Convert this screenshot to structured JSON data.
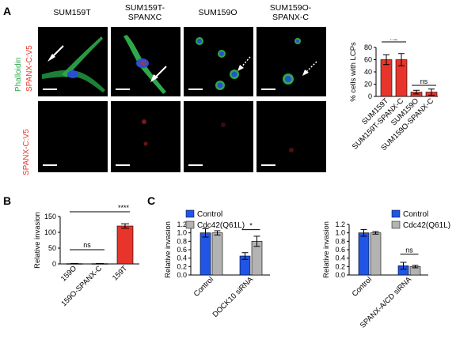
{
  "panels": {
    "a": "A",
    "b": "B",
    "c": "C"
  },
  "microscopy": {
    "columns": [
      "SUM159T",
      "SUM159T-\nSPANXC",
      "SUM159O",
      "SUM159O-\nSPANX-C"
    ],
    "row1_label_green": "Phalloidin",
    "row1_label_red": "SPANX-C:V5",
    "row2_label": "SPANX-C:V5"
  },
  "colors": {
    "red": "#e8352b",
    "blue": "#2055e6",
    "grey": "#b3b3b3",
    "green": "#2ea84a"
  },
  "chart_data": [
    {
      "id": "A",
      "type": "bar",
      "ylabel": "% cells with LCPs",
      "categories": [
        "SUM159T",
        "SUM159T-SPANX-C",
        "SUM159O",
        "SUM159O-SPANX-C"
      ],
      "values": [
        60,
        60,
        7,
        7
      ],
      "errors": [
        8,
        10,
        3,
        5
      ],
      "ylim": [
        0,
        80
      ],
      "yticks": [
        "0",
        "20",
        "40",
        "60",
        "80"
      ],
      "significance": [
        "ns",
        "****",
        "****",
        "ns"
      ]
    },
    {
      "id": "B",
      "type": "bar",
      "ylabel": "Relative invasion",
      "categories": [
        "159O",
        "159O-SPANX-C",
        "159T"
      ],
      "values": [
        1,
        1,
        120
      ],
      "errors": [
        0.5,
        0.5,
        7
      ],
      "ylim": [
        0,
        150
      ],
      "yticks": [
        "0",
        "50",
        "100",
        "150"
      ],
      "significance": [
        "ns",
        "****"
      ]
    },
    {
      "id": "C1",
      "type": "bar",
      "ylabel": "Relative invasion",
      "categories": [
        "Control",
        "DOCK10 siRNA"
      ],
      "series": [
        {
          "name": "Control",
          "values": [
            1.0,
            0.45
          ],
          "errors": [
            0.1,
            0.08
          ]
        },
        {
          "name": "Cdc42(Q61L)",
          "values": [
            1.0,
            0.8
          ],
          "errors": [
            0.05,
            0.12
          ]
        }
      ],
      "ylim": [
        0,
        1.2
      ],
      "yticks": [
        "0.0",
        "0.2",
        "0.4",
        "0.6",
        "0.8",
        "1.0",
        "1.2"
      ],
      "significance": [
        "*"
      ]
    },
    {
      "id": "C2",
      "type": "bar",
      "ylabel": "Relative invasion",
      "categories": [
        "Control",
        "SPANX-A/CD siRNA"
      ],
      "series": [
        {
          "name": "Control",
          "values": [
            1.0,
            0.22
          ],
          "errors": [
            0.08,
            0.08
          ]
        },
        {
          "name": "Cdc42(Q61L)",
          "values": [
            1.0,
            0.2
          ],
          "errors": [
            0.03,
            0.03
          ]
        }
      ],
      "ylim": [
        0,
        1.2
      ],
      "yticks": [
        "0.0",
        "0.2",
        "0.4",
        "0.6",
        "0.8",
        "1.0",
        "1.2"
      ],
      "significance": [
        "ns"
      ]
    }
  ]
}
